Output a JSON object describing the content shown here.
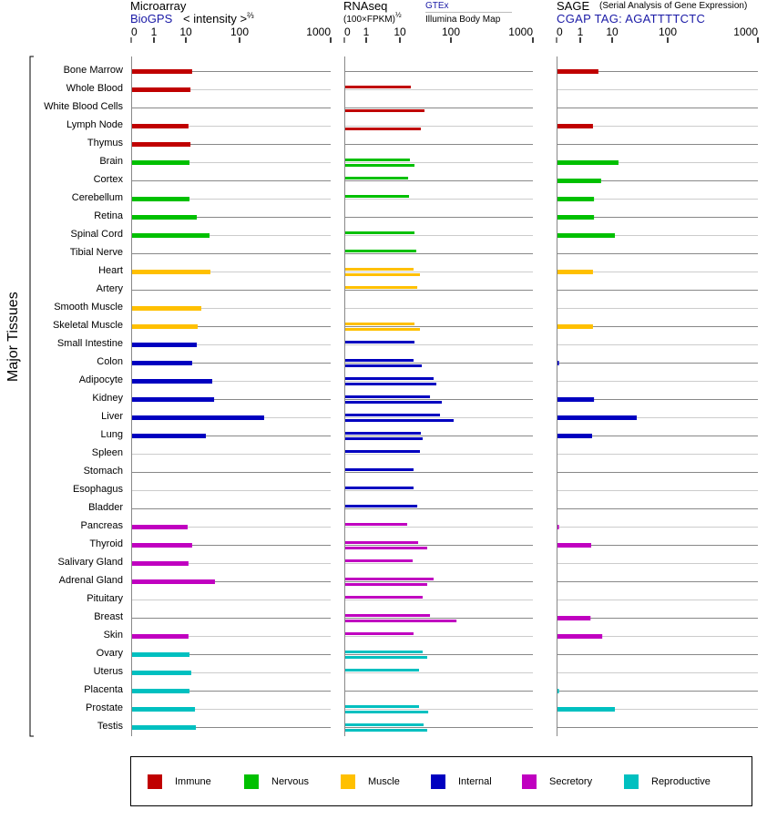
{
  "headers": {
    "microarray": {
      "title": "Microarray",
      "source": "BioGPS",
      "unit": "< intensity >",
      "unit_exp": "⅔"
    },
    "rnaseq": {
      "title": "RNAseq",
      "unit": "(100×FPKM)",
      "unit_exp": "½",
      "source1": "GTEx",
      "source2": "Illumina Body Map"
    },
    "sage": {
      "title": "SAGE",
      "subtitle": "(Serial Analysis of Gene Expression)",
      "tag": "CGAP TAG: AGATTTTCTC"
    }
  },
  "y_axis_label": "Major Tissues",
  "legend": [
    {
      "label": "Immune",
      "color": "#c00000"
    },
    {
      "label": "Nervous",
      "color": "#00c000"
    },
    {
      "label": "Muscle",
      "color": "#ffc000"
    },
    {
      "label": "Internal",
      "color": "#0000c0"
    },
    {
      "label": "Secretory",
      "color": "#c000c0"
    },
    {
      "label": "Reproductive",
      "color": "#00c0c0"
    }
  ],
  "chart_data": {
    "type": "bar",
    "orientation": "horizontal",
    "categories": [
      "Bone Marrow",
      "Whole Blood",
      "White Blood Cells",
      "Lymph Node",
      "Thymus",
      "Brain",
      "Cortex",
      "Cerebellum",
      "Retina",
      "Spinal Cord",
      "Tibial Nerve",
      "Heart",
      "Artery",
      "Smooth Muscle",
      "Skeletal Muscle",
      "Small Intestine",
      "Colon",
      "Adipocyte",
      "Kidney",
      "Liver",
      "Lung",
      "Spleen",
      "Stomach",
      "Esophagus",
      "Bladder",
      "Pancreas",
      "Thyroid",
      "Salivary Gland",
      "Adrenal Gland",
      "Pituitary",
      "Breast",
      "Skin",
      "Ovary",
      "Uterus",
      "Placenta",
      "Prostate",
      "Testis"
    ],
    "category_groups": [
      "Immune",
      "Immune",
      "Immune",
      "Immune",
      "Immune",
      "Nervous",
      "Nervous",
      "Nervous",
      "Nervous",
      "Nervous",
      "Nervous",
      "Muscle",
      "Muscle",
      "Muscle",
      "Muscle",
      "Internal",
      "Internal",
      "Internal",
      "Internal",
      "Internal",
      "Internal",
      "Internal",
      "Internal",
      "Internal",
      "Internal",
      "Secretory",
      "Secretory",
      "Secretory",
      "Secretory",
      "Secretory",
      "Secretory",
      "Secretory",
      "Reproductive",
      "Reproductive",
      "Reproductive",
      "Reproductive",
      "Reproductive"
    ],
    "tick_labels": [
      "0",
      "1",
      "10",
      "100",
      "1000"
    ],
    "xlim": [
      0,
      1000
    ],
    "panels": [
      {
        "key": "microarray",
        "series": [
          {
            "name": "BioGPS",
            "values": [
              13.1,
              12.2,
              null,
              11.2,
              12.2,
              11.7,
              null,
              11.7,
              16,
              27.6,
              null,
              28.7,
              null,
              19.4,
              16.6,
              16,
              13.1,
              31,
              33.6,
              186,
              23.6,
              null,
              null,
              null,
              null,
              10.8,
              13.1,
              11.2,
              34.8,
              null,
              null,
              11.2,
              11.7,
              12.6,
              11.7,
              14.8,
              15.4
            ]
          }
        ]
      },
      {
        "key": "rnaseq",
        "series": [
          {
            "name": "GTEx",
            "values": [
              null,
              16.4,
              null,
              null,
              null,
              15.7,
              14.5,
              15.1,
              null,
              19.3,
              20.9,
              18.5,
              21.9,
              null,
              19.3,
              19.3,
              18.5,
              45.8,
              38.9,
              61.1,
              25.7,
              24.7,
              18.5,
              18.5,
              21.9,
              13.9,
              22.8,
              17.8,
              45.8,
              27.9,
              38.9,
              18.5,
              27.9,
              23.7,
              null,
              23.7,
              29.1
            ]
          },
          {
            "name": "Illumina Body Map",
            "values": [
              null,
              null,
              30.3,
              25.7,
              null,
              19.3,
              null,
              null,
              null,
              null,
              null,
              24.7,
              null,
              null,
              24.7,
              null,
              26.9,
              51.8,
              66.3,
              108,
              27.9,
              null,
              null,
              null,
              null,
              null,
              34.3,
              null,
              34.3,
              null,
              117,
              null,
              34.3,
              null,
              null,
              35.9,
              34.3
            ]
          }
        ]
      },
      {
        "key": "sage",
        "series": [
          {
            "name": "CGAP TAG: AGATTTTCTC",
            "values": [
              3.7,
              null,
              null,
              2.5,
              null,
              13,
              4.5,
              2.7,
              2.7,
              11.2,
              null,
              2.5,
              null,
              null,
              2.5,
              null,
              0.1,
              null,
              2.7,
              27.7,
              2.35,
              null,
              null,
              null,
              null,
              0.1,
              2.2,
              null,
              null,
              null,
              2.1,
              4.9,
              null,
              null,
              0.1,
              11.2,
              null
            ]
          }
        ]
      }
    ]
  }
}
